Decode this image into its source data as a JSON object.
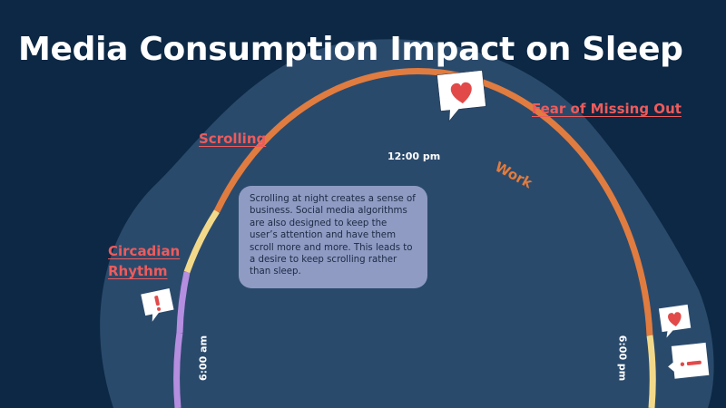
{
  "slide": {
    "title": "Media Consumption Impact on Sleep",
    "background_color": "#0c2845"
  },
  "topics": {
    "scrolling": "Scrolling",
    "fear_of_missing_out": "Fear of Missing Out",
    "circadian_rhythm": "Circadian Rhythm"
  },
  "clock": {
    "noon_label": "12:00 pm",
    "morning_label": "6:00 am",
    "evening_label": "6:00 pm",
    "work_label": "Work"
  },
  "info_card": {
    "text": "Scrolling at night creates a sense of business. Social media algorithms are also designed to keep the user’s attention and have them scroll more and more. This leads to a desire to keep scrolling rather than sleep."
  },
  "icons": [
    "heart-bubble-icon",
    "alert-bubble-icon",
    "heart-bubble-icon",
    "alert-bubble-icon"
  ],
  "colors": {
    "title": "#ffffff",
    "link": "#ee5b5b",
    "arc_orange": "#e07c3f",
    "arc_yellow": "#f2d98a",
    "arc_purple": "#b58ee0",
    "card": "#8f9bc3",
    "blob": "#2a4a6c"
  }
}
